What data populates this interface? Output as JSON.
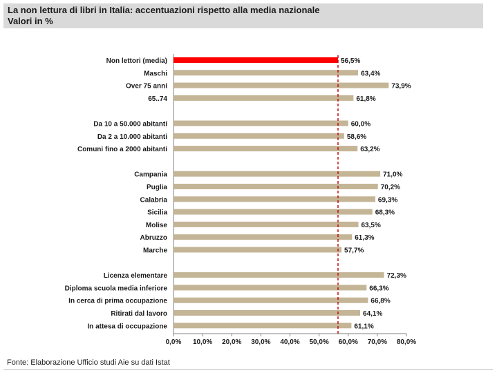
{
  "header": {
    "title": "La non lettura di libri in Italia: accentuazioni rispetto alla media nazionale",
    "subtitle": "Valori in %"
  },
  "footer": {
    "source": "Fonte: Elaborazione  Ufficio studi Aie su dati Istat"
  },
  "chart_data": {
    "type": "bar",
    "orientation": "horizontal",
    "title": "La non lettura di libri in Italia: accentuazioni rispetto alla media nazionale",
    "subtitle": "Valori in %",
    "xlim": [
      0,
      80
    ],
    "x_ticks": [
      "0,0%",
      "10,0%",
      "20,0%",
      "30,0%",
      "40,0%",
      "50,0%",
      "60,0%",
      "70,0%",
      "80,0%"
    ],
    "reference_line": {
      "value": 56.5,
      "style": "dashed",
      "color": "#c00000"
    },
    "highlight_color": "#ff0000",
    "bar_color": "#c4b596",
    "groups": [
      [
        {
          "label": "Non lettori (media)",
          "value": 56.5,
          "display": "56,5%",
          "highlight": true
        },
        {
          "label": "Maschi",
          "value": 63.4,
          "display": "63,4%"
        },
        {
          "label": "Over 75 anni",
          "value": 73.9,
          "display": "73,9%"
        },
        {
          "label": "65..74",
          "value": 61.8,
          "display": "61,8%"
        }
      ],
      [
        {
          "label": "Da 10 a 50.000 abitanti",
          "value": 60.0,
          "display": "60,0%"
        },
        {
          "label": "Da 2 a 10.000 abitanti",
          "value": 58.6,
          "display": "58,6%"
        },
        {
          "label": "Comuni fino a 2000 abitanti",
          "value": 63.2,
          "display": "63,2%"
        }
      ],
      [
        {
          "label": "Campania",
          "value": 71.0,
          "display": "71,0%"
        },
        {
          "label": "Puglia",
          "value": 70.2,
          "display": "70,2%"
        },
        {
          "label": "Calabria",
          "value": 69.3,
          "display": "69,3%"
        },
        {
          "label": "Sicilia",
          "value": 68.3,
          "display": "68,3%"
        },
        {
          "label": "Molise",
          "value": 63.5,
          "display": "63,5%"
        },
        {
          "label": "Abruzzo",
          "value": 61.3,
          "display": "61,3%"
        },
        {
          "label": "Marche",
          "value": 57.7,
          "display": "57,7%"
        }
      ],
      [
        {
          "label": "Licenza elementare",
          "value": 72.3,
          "display": "72,3%"
        },
        {
          "label": "Diploma scuola media inferiore",
          "value": 66.3,
          "display": "66,3%"
        },
        {
          "label": "In cerca di prima occupazione",
          "value": 66.8,
          "display": "66,8%"
        },
        {
          "label": "Ritirati dal lavoro",
          "value": 64.1,
          "display": "64,1%"
        },
        {
          "label": "In attesa di occupazione",
          "value": 61.1,
          "display": "61,1%"
        }
      ]
    ]
  }
}
